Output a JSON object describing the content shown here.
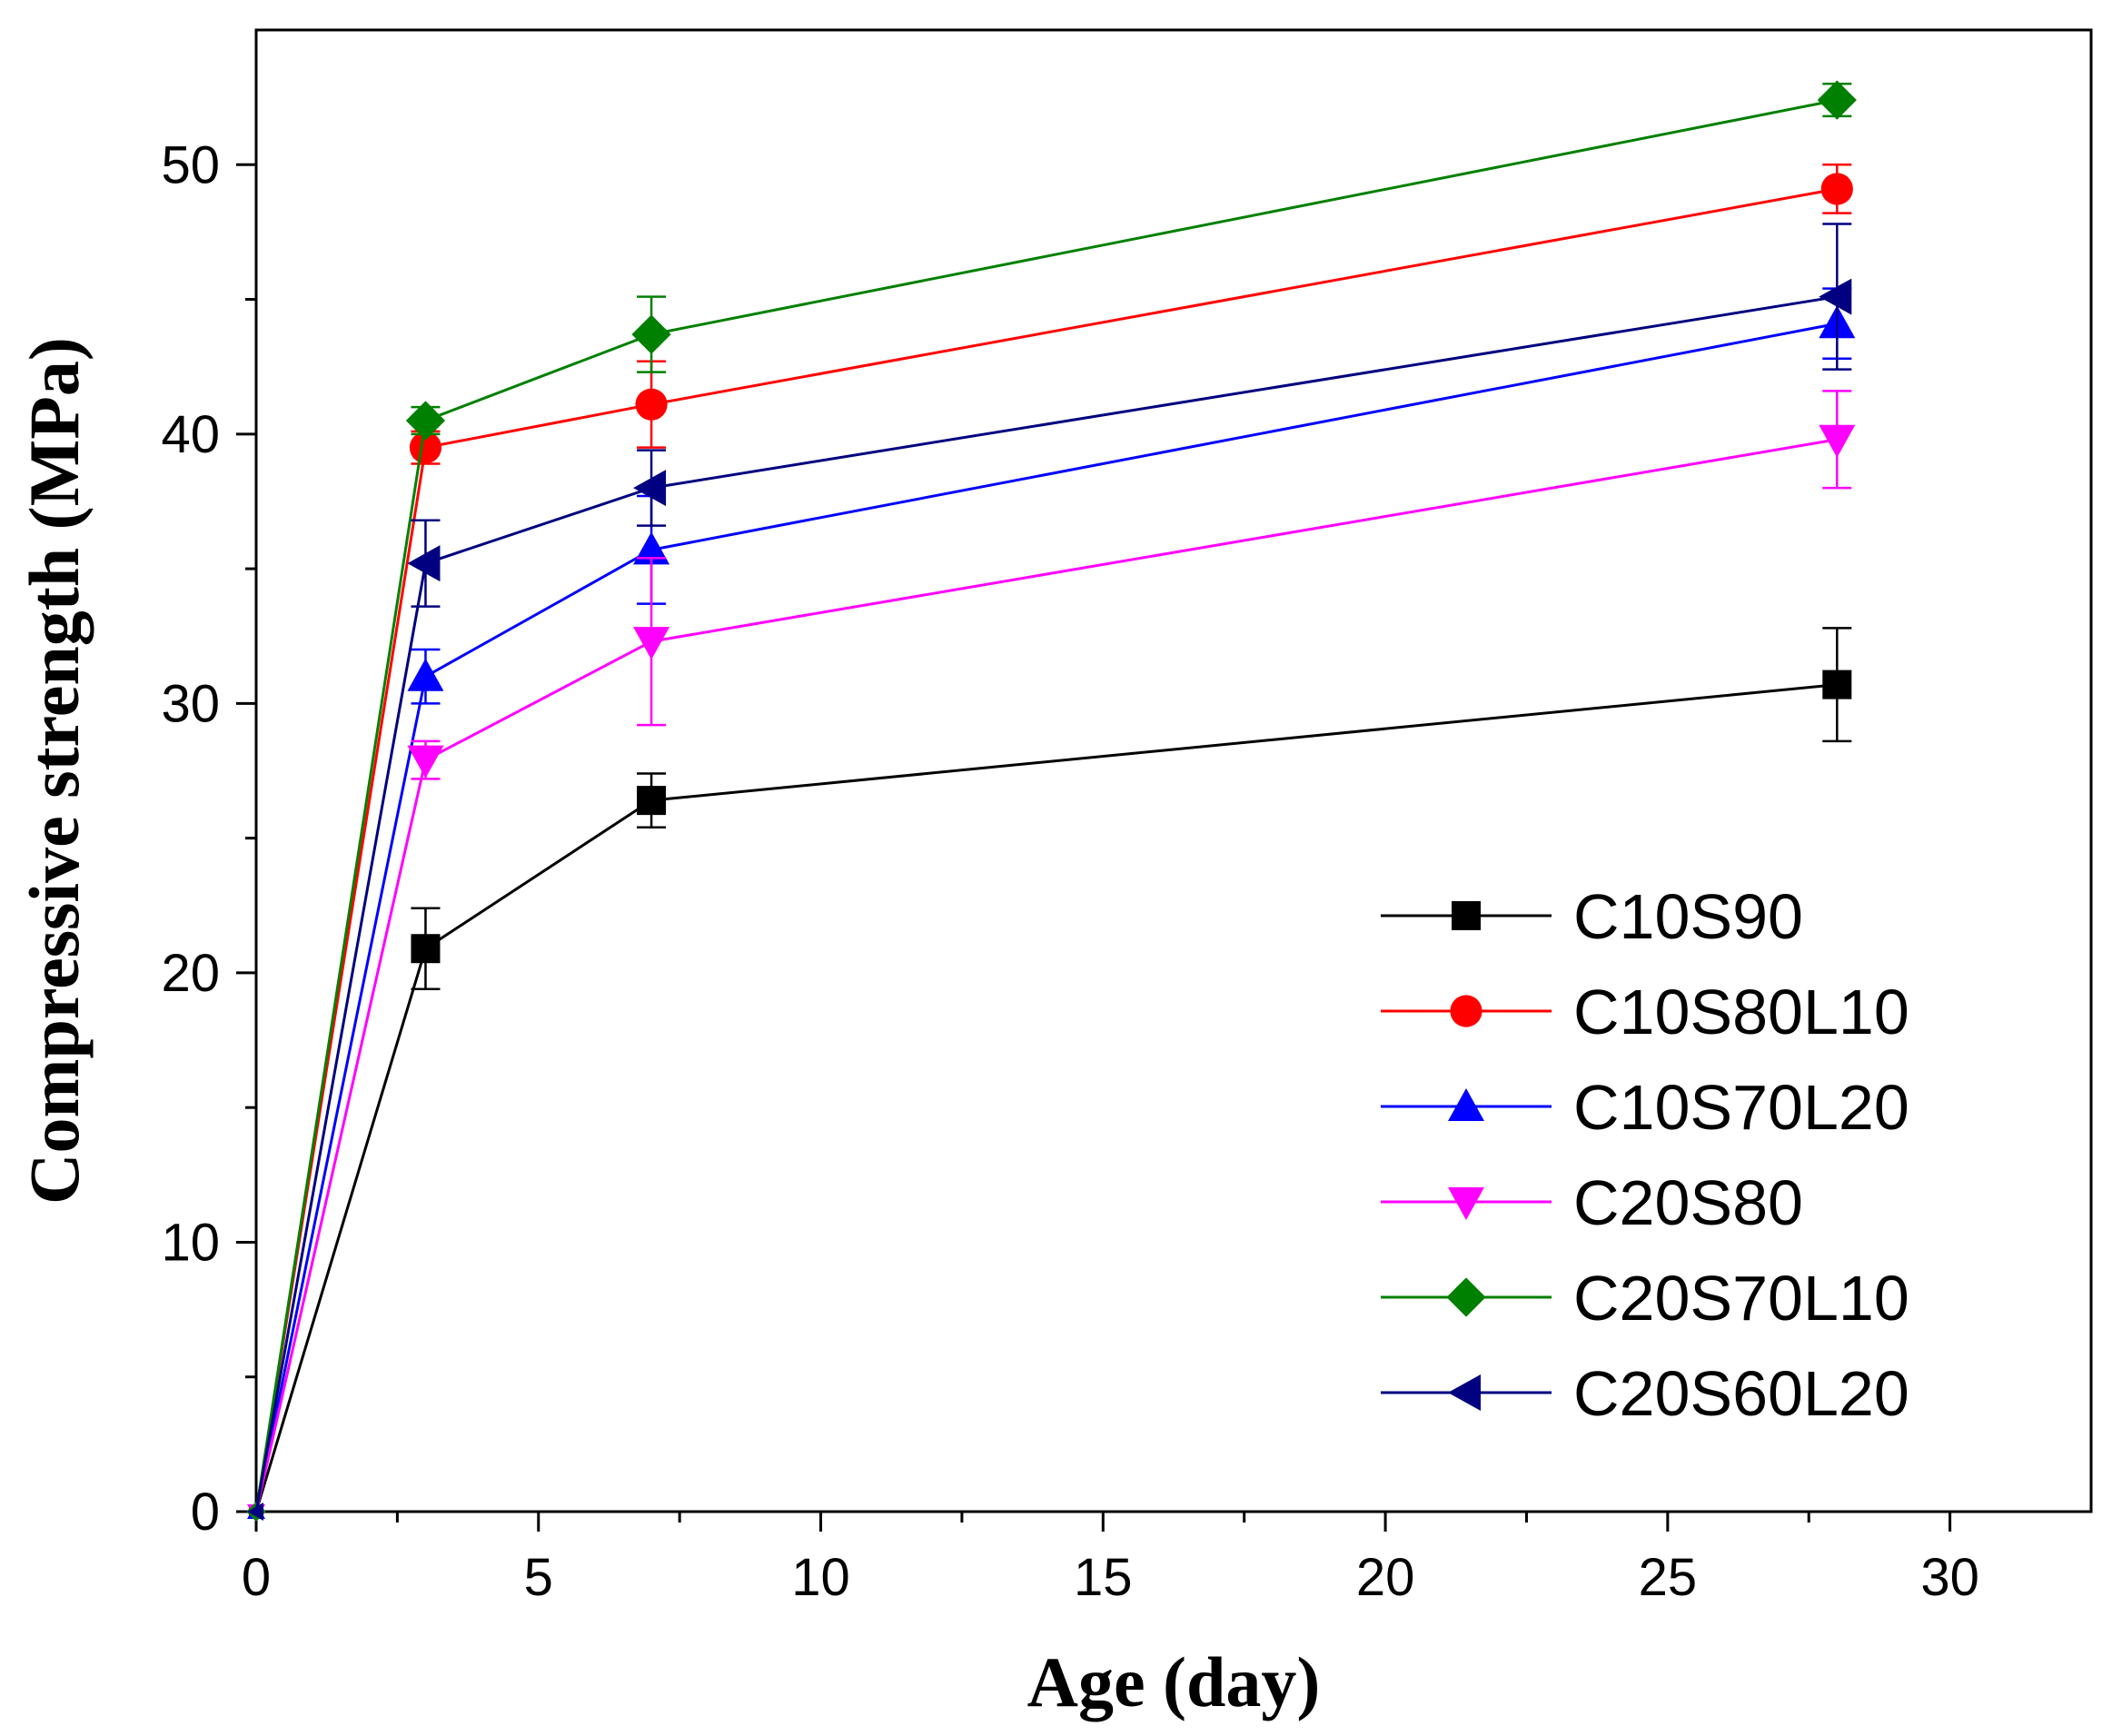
{
  "chart_data": {
    "type": "line",
    "title": "",
    "xlabel": "Age (day)",
    "ylabel": "Compressive strength (MPa)",
    "xlim": [
      0,
      32.5
    ],
    "ylim": [
      0,
      55
    ],
    "x_ticks": [
      0,
      5,
      10,
      15,
      20,
      25,
      30
    ],
    "y_ticks": [
      0,
      10,
      20,
      30,
      40,
      50
    ],
    "grid": false,
    "legend_position": "bottom-right",
    "x": [
      0,
      3,
      7,
      28
    ],
    "series": [
      {
        "name": "C10S90",
        "color": "#000000",
        "marker": "square",
        "values": [
          0,
          20.9,
          26.4,
          30.7
        ],
        "errors": [
          0,
          1.5,
          1.0,
          2.1
        ]
      },
      {
        "name": "C10S80L10",
        "color": "#ff0000",
        "marker": "circle",
        "values": [
          0,
          39.5,
          41.1,
          49.1
        ],
        "errors": [
          0,
          0.6,
          1.6,
          0.9
        ]
      },
      {
        "name": "C10S70L20",
        "color": "#0000ff",
        "marker": "triangle-up",
        "values": [
          0,
          31.0,
          35.7,
          44.1
        ],
        "errors": [
          0,
          1.0,
          2.0,
          1.3
        ]
      },
      {
        "name": "C20S80",
        "color": "#ff00ff",
        "marker": "triangle-down",
        "values": [
          0,
          27.9,
          32.3,
          39.8
        ],
        "errors": [
          0,
          0.7,
          3.1,
          1.8
        ]
      },
      {
        "name": "C20S70L10",
        "color": "#008000",
        "marker": "diamond",
        "values": [
          0,
          40.5,
          43.7,
          52.4
        ],
        "errors": [
          0,
          0.5,
          1.4,
          0.6
        ]
      },
      {
        "name": "C20S60L20",
        "color": "#000080",
        "marker": "triangle-left",
        "values": [
          0,
          35.2,
          38.0,
          45.1
        ],
        "errors": [
          0,
          1.6,
          1.4,
          2.7
        ]
      }
    ]
  }
}
